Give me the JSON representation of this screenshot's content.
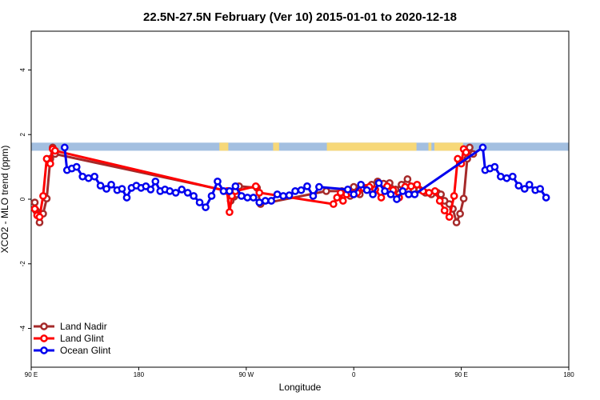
{
  "chart_data": {
    "type": "line",
    "title": "22.5N-27.5N February (Ver 10)   2015-01-01 to 2020-12-18",
    "xlabel": "Longitude",
    "ylabel": "XCO2 - MLO trend (ppm)",
    "xlim": [
      90,
      540
    ],
    "ylim": [
      -5.2,
      5.2
    ],
    "x_ticks": [
      {
        "value": 90,
        "label": "90 E"
      },
      {
        "value": 180,
        "label": "180"
      },
      {
        "value": 270,
        "label": "90 W"
      },
      {
        "value": 360,
        "label": "0"
      },
      {
        "value": 450,
        "label": "90 E"
      },
      {
        "value": 540,
        "label": "180"
      }
    ],
    "y_ticks": [
      {
        "value": -4,
        "label": "-4"
      },
      {
        "value": -2,
        "label": "-2"
      },
      {
        "value": 0,
        "label": "0"
      },
      {
        "value": 2,
        "label": "2"
      },
      {
        "value": 4,
        "label": "4"
      }
    ],
    "grid": false,
    "legend_position": "bottom-left",
    "land_strip": {
      "y_range": [
        1.5,
        1.75
      ],
      "ocean_color": "#a3bfe0",
      "land_color": "#f7d878",
      "land_spans": [
        [
          247.5,
          255
        ],
        [
          292.5,
          297.5
        ],
        [
          337.5,
          412.5
        ],
        [
          422.5,
          425
        ],
        [
          427.5,
          451.5
        ]
      ]
    },
    "series": [
      {
        "name": "Land Nadir",
        "color": "#a52a2a",
        "points": [
          [
            93,
            -0.1
          ],
          [
            94,
            -0.35
          ],
          [
            97,
            -0.72
          ],
          [
            100,
            -0.45
          ],
          [
            103,
            0.02
          ],
          [
            106,
            1.25
          ],
          [
            108,
            1.6
          ],
          [
            110,
            1.4
          ],
          [
            255,
            0.25
          ],
          [
            257,
            -0.05
          ],
          [
            260,
            0.08
          ],
          [
            262,
            0.15
          ],
          [
            264,
            0.4
          ],
          [
            279,
            0.35
          ],
          [
            282,
            -0.15
          ],
          [
            337,
            0.25
          ],
          [
            350,
            0.25
          ],
          [
            357,
            0.1
          ],
          [
            360,
            0.38
          ],
          [
            365,
            0.15
          ],
          [
            370,
            0.35
          ],
          [
            375,
            0.45
          ],
          [
            380,
            0.55
          ],
          [
            385,
            0.48
          ],
          [
            390,
            0.5
          ],
          [
            395,
            0.3
          ],
          [
            400,
            0.45
          ],
          [
            405,
            0.62
          ],
          [
            410,
            0.3
          ],
          [
            415,
            0.3
          ],
          [
            420,
            0.2
          ],
          [
            425,
            0.15
          ],
          [
            430,
            0.2
          ],
          [
            433,
            0.15
          ],
          [
            436,
            -0.05
          ],
          [
            440,
            -0.15
          ],
          [
            443,
            -0.3
          ],
          [
            446,
            -0.72
          ],
          [
            449,
            -0.45
          ],
          [
            452,
            0.02
          ],
          [
            455,
            1.25
          ],
          [
            457,
            1.6
          ],
          [
            460,
            1.4
          ]
        ]
      },
      {
        "name": "Land Glint",
        "color": "#ff0000",
        "points": [
          [
            93,
            -0.3
          ],
          [
            95,
            -0.5
          ],
          [
            97,
            -0.55
          ],
          [
            100,
            0.1
          ],
          [
            103,
            1.25
          ],
          [
            106,
            1.1
          ],
          [
            108,
            1.55
          ],
          [
            110,
            1.5
          ],
          [
            254,
            0.25
          ],
          [
            256,
            -0.4
          ],
          [
            258,
            0.1
          ],
          [
            261,
            0.25
          ],
          [
            278,
            0.4
          ],
          [
            281,
            0.2
          ],
          [
            343,
            -0.15
          ],
          [
            346,
            0.05
          ],
          [
            349,
            0.2
          ],
          [
            351,
            -0.05
          ],
          [
            354,
            0.15
          ],
          [
            358,
            0.18
          ],
          [
            363,
            0.2
          ],
          [
            368,
            0.35
          ],
          [
            373,
            0.38
          ],
          [
            378,
            0.3
          ],
          [
            383,
            0.05
          ],
          [
            388,
            0.4
          ],
          [
            393,
            0.28
          ],
          [
            398,
            0.05
          ],
          [
            403,
            0.38
          ],
          [
            408,
            0.4
          ],
          [
            413,
            0.45
          ],
          [
            418,
            0.25
          ],
          [
            423,
            0.2
          ],
          [
            428,
            0.25
          ],
          [
            432,
            -0.05
          ],
          [
            436,
            -0.35
          ],
          [
            440,
            -0.55
          ],
          [
            444,
            0.1
          ],
          [
            447,
            1.25
          ],
          [
            450,
            1.1
          ],
          [
            452,
            1.55
          ],
          [
            454,
            1.45
          ]
        ]
      },
      {
        "name": "Ocean Glint",
        "color": "#0000ee",
        "points": [
          [
            118,
            1.6
          ],
          [
            120,
            0.9
          ],
          [
            124,
            0.95
          ],
          [
            128,
            1.0
          ],
          [
            133,
            0.7
          ],
          [
            138,
            0.65
          ],
          [
            143,
            0.7
          ],
          [
            148,
            0.42
          ],
          [
            153,
            0.32
          ],
          [
            157,
            0.45
          ],
          [
            162,
            0.28
          ],
          [
            166,
            0.32
          ],
          [
            170,
            0.05
          ],
          [
            174,
            0.35
          ],
          [
            178,
            0.42
          ],
          [
            182,
            0.35
          ],
          [
            186,
            0.4
          ],
          [
            190,
            0.3
          ],
          [
            194,
            0.55
          ],
          [
            198,
            0.25
          ],
          [
            202,
            0.3
          ],
          [
            206,
            0.25
          ],
          [
            211,
            0.2
          ],
          [
            216,
            0.3
          ],
          [
            221,
            0.2
          ],
          [
            226,
            0.1
          ],
          [
            231,
            -0.1
          ],
          [
            236,
            -0.25
          ],
          [
            241,
            0.1
          ],
          [
            246,
            0.55
          ],
          [
            251,
            0.25
          ],
          [
            256,
            0.25
          ],
          [
            261,
            0.4
          ],
          [
            266,
            0.1
          ],
          [
            271,
            0.05
          ],
          [
            276,
            0.05
          ],
          [
            281,
            -0.1
          ],
          [
            286,
            -0.05
          ],
          [
            291,
            -0.05
          ],
          [
            296,
            0.15
          ],
          [
            301,
            0.1
          ],
          [
            306,
            0.12
          ],
          [
            311,
            0.25
          ],
          [
            316,
            0.28
          ],
          [
            321,
            0.4
          ],
          [
            326,
            0.1
          ],
          [
            331,
            0.38
          ],
          [
            355,
            0.3
          ],
          [
            360,
            0.15
          ],
          [
            366,
            0.45
          ],
          [
            371,
            0.28
          ],
          [
            376,
            0.15
          ],
          [
            381,
            0.5
          ],
          [
            386,
            0.25
          ],
          [
            391,
            0.15
          ],
          [
            396,
            0.0
          ],
          [
            401,
            0.25
          ],
          [
            406,
            0.15
          ],
          [
            411,
            0.15
          ],
          [
            468,
            1.6
          ],
          [
            470,
            0.9
          ],
          [
            474,
            0.95
          ],
          [
            478,
            1.0
          ],
          [
            483,
            0.7
          ],
          [
            488,
            0.65
          ],
          [
            493,
            0.7
          ],
          [
            498,
            0.42
          ],
          [
            503,
            0.32
          ],
          [
            507,
            0.45
          ],
          [
            512,
            0.28
          ],
          [
            516,
            0.32
          ],
          [
            521,
            0.05
          ]
        ]
      }
    ]
  }
}
